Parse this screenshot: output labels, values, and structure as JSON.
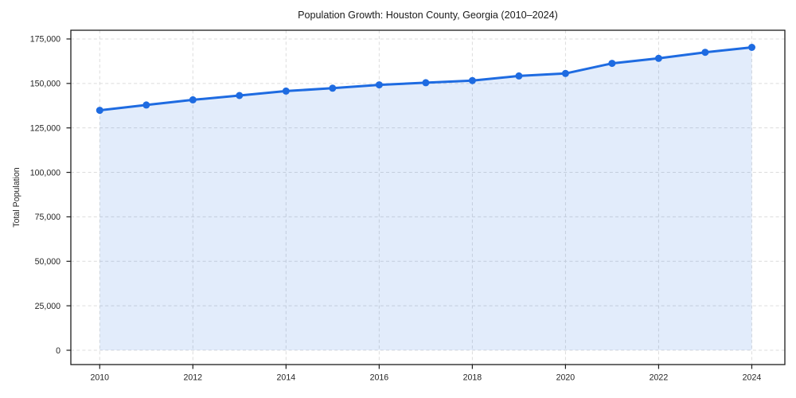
{
  "chart_data": {
    "type": "area",
    "title": "Population Growth: Houston County, Georgia (2010–2024)",
    "xlabel": "",
    "ylabel": "Total Population",
    "x": [
      2010,
      2011,
      2012,
      2013,
      2014,
      2015,
      2016,
      2017,
      2018,
      2019,
      2020,
      2021,
      2022,
      2023,
      2024
    ],
    "series": [
      {
        "name": "Total Population",
        "values": [
          134900,
          137900,
          140800,
          143200,
          145700,
          147300,
          149200,
          150400,
          151600,
          154200,
          155600,
          161300,
          164100,
          167500,
          170300
        ]
      }
    ],
    "xticks": {
      "values": [
        2010,
        2012,
        2014,
        2016,
        2018,
        2020,
        2022,
        2024
      ],
      "labels": [
        "2010",
        "2012",
        "2014",
        "2016",
        "2018",
        "2020",
        "2022",
        "2024"
      ]
    },
    "yticks": {
      "values": [
        0,
        25000,
        50000,
        75000,
        100000,
        125000,
        150000,
        175000
      ],
      "labels": [
        "0",
        "25,000",
        "50,000",
        "75,000",
        "100,000",
        "125,000",
        "150,000",
        "175,000"
      ]
    },
    "xlim": [
      2009.38,
      2024.71
    ],
    "ylim": [
      -8050,
      179900
    ],
    "area_baseline": 0,
    "grid": true,
    "grid_style": "dashed",
    "legend": "none",
    "marker": "circle",
    "colors": {
      "line": "#1e6be1",
      "fill": "#1e6be1",
      "fill_opacity": 0.13,
      "grid": "#dcdcdc",
      "spine": "#1c1c1c",
      "tick_text": "#262626",
      "title_text": "#1a1a1a",
      "background": "#ffffff"
    }
  }
}
